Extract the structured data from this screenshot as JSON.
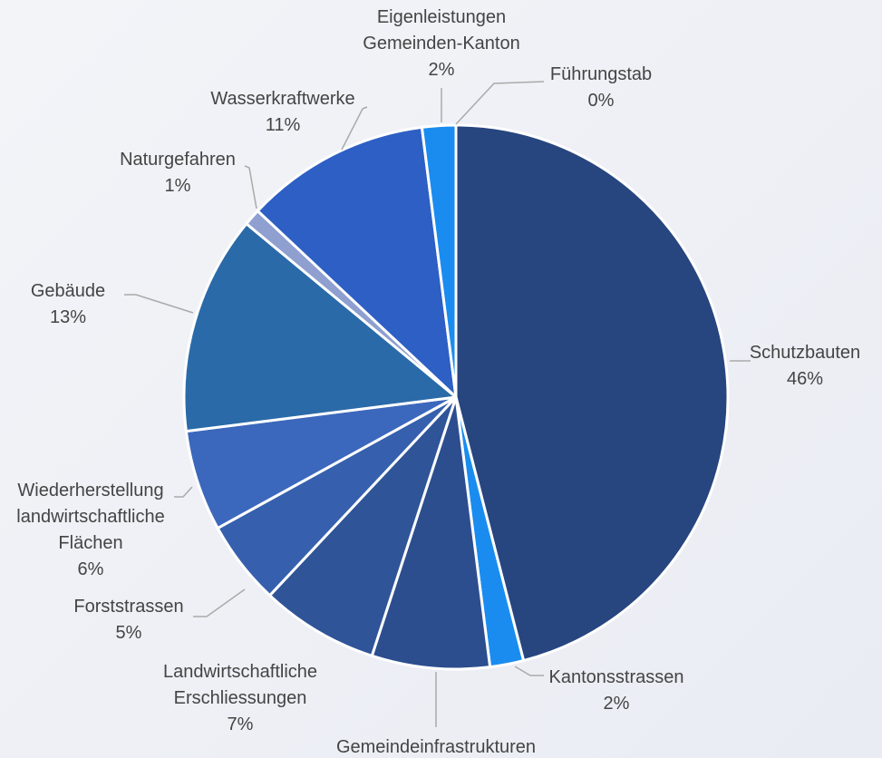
{
  "chart_data": {
    "type": "pie",
    "categories": [
      "Schutzbauten",
      "Kantonsstrassen",
      "Gemeindeinfrastrukturen",
      "Landwirtschaftliche\nErschliessungen",
      "Forststrassen",
      "Wiederherstellung\nlandwirtschaftliche\nFlächen",
      "Gebäude",
      "Naturgefahren",
      "Wasserkraftwerke",
      "Eigenleistungen\nGemeinden-Kanton",
      "Führungstab"
    ],
    "values": [
      46,
      2,
      7,
      7,
      5,
      6,
      13,
      1,
      11,
      2,
      0
    ],
    "value_labels": [
      "46%",
      "2%",
      null,
      "7%",
      "5%",
      "6%",
      "13%",
      "1%",
      "11%",
      "2%",
      "0%"
    ],
    "colors": [
      "#27457f",
      "#1a8cf0",
      "#2c4e8f",
      "#2f5498",
      "#3660ae",
      "#3b68bc",
      "#2a6aa8",
      "#8e9fd0",
      "#2d5fc4",
      "#1a8cf0",
      "#3b9af5"
    ]
  }
}
